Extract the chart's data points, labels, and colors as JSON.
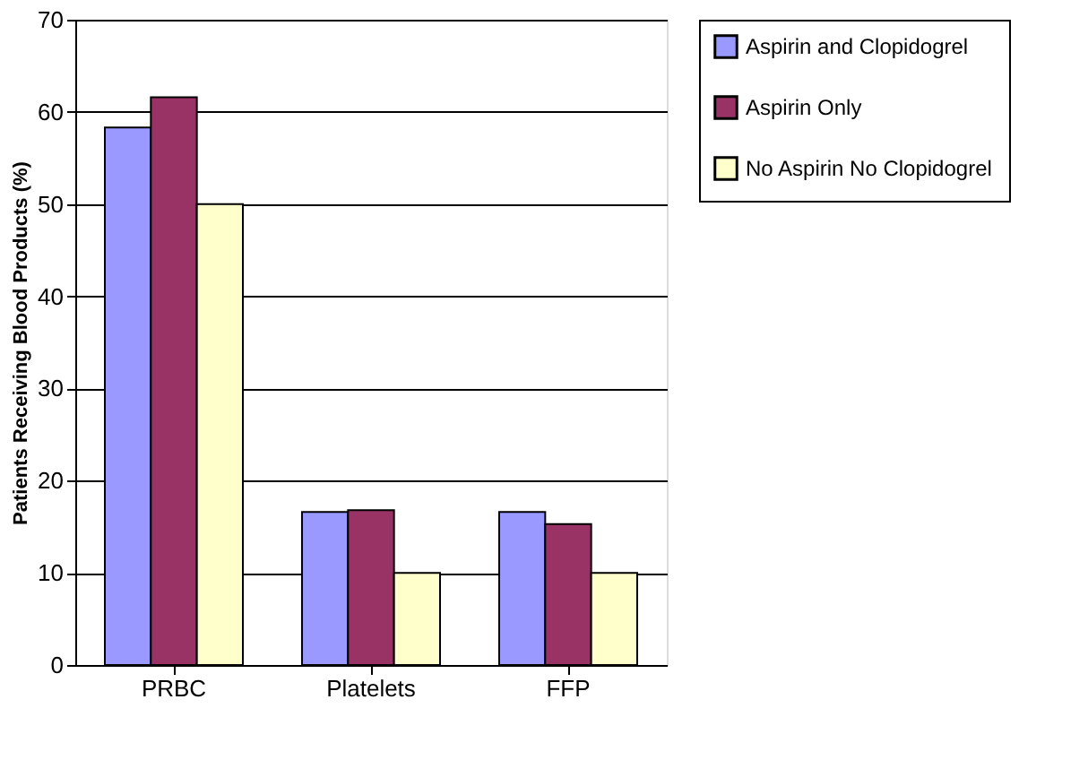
{
  "chart_data": {
    "type": "bar",
    "ylabel": "Patients Receiving Blood Products (%)",
    "categories": [
      "PRBC",
      "Platelets",
      "FFP"
    ],
    "series": [
      {
        "name": "Aspirin and Clopidogrel",
        "color": "#9999ff",
        "values": [
          58.3,
          16.6,
          16.6
        ]
      },
      {
        "name": "Aspirin Only",
        "color": "#993366",
        "values": [
          61.6,
          16.8,
          15.3
        ]
      },
      {
        "name": "No Aspirin No Clopidogrel",
        "color": "#ffffcc",
        "values": [
          50,
          10,
          10
        ]
      }
    ],
    "ylim": [
      0,
      70
    ],
    "yticks": [
      0,
      10,
      20,
      30,
      40,
      50,
      60,
      70
    ],
    "grid": "y",
    "legend": "right"
  }
}
